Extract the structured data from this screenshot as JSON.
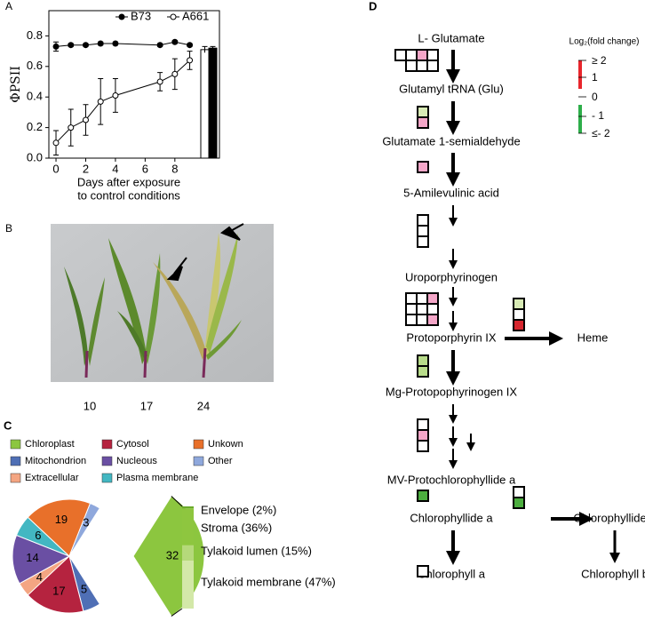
{
  "panel_labels": [
    "A",
    "B",
    "C",
    "D"
  ],
  "chart_data": [
    {
      "type": "line",
      "x": [
        0,
        1,
        2,
        3,
        4,
        7,
        8,
        9
      ],
      "series": [
        {
          "name": "B73",
          "color": "#000000",
          "marker": "filled",
          "values": [
            0.73,
            0.74,
            0.74,
            0.75,
            0.75,
            0.74,
            0.76,
            0.74
          ],
          "errors": [
            0.03,
            0.01,
            0.01,
            0.01,
            0.01,
            0.01,
            0.01,
            0.01
          ]
        },
        {
          "name": "A661",
          "color": "#000000",
          "marker": "open",
          "values": [
            0.1,
            0.2,
            0.25,
            0.37,
            0.41,
            0.5,
            0.55,
            0.64
          ],
          "errors": [
            0.08,
            0.12,
            0.1,
            0.15,
            0.11,
            0.06,
            0.1,
            0.06
          ]
        }
      ],
      "bars": [
        {
          "color": "#ffffff",
          "value": 0.71,
          "error": 0.02
        },
        {
          "color": "#000000",
          "value": 0.72,
          "error": 0.01
        }
      ],
      "xlim": [
        -0.48,
        11
      ],
      "ylim": [
        0,
        0.965
      ],
      "xticks": [
        0,
        2,
        4,
        6,
        8
      ],
      "yticks": [
        {
          "value": 0,
          "label": "0.0"
        },
        0.2,
        0.4,
        0.6,
        0.8
      ],
      "xlabel": [
        "Days after exposure",
        "to control conditions"
      ],
      "ylabel": "ΦPSII"
    },
    {
      "type": "pie",
      "categories": [
        "Chloroplast",
        "Mitochondrion",
        "Extracellular",
        "Cytosol",
        "Nucleous",
        "Plasma membrane",
        "Unkown",
        "Other"
      ],
      "values": [
        32,
        5,
        4,
        17,
        14,
        6,
        19,
        3
      ],
      "colors": [
        "#8cc63f",
        "#4f6fb5",
        "#f4a582",
        "#b5233f",
        "#6a4fa3",
        "#43b7c2",
        "#e8702a",
        "#8fa8dc"
      ],
      "breakdown": {
        "labels": [
          "Envelope (2%)",
          "Stroma (36%)",
          "Tylakoid lumen (15%)",
          "Tylakoid membrane (47%)"
        ],
        "values": [
          2,
          36,
          15,
          47
        ],
        "colors": [
          "#6aaa2a",
          "#8ec63f",
          "#b5d97a",
          "#d3e8a8"
        ]
      }
    }
  ],
  "photo": {
    "labels": [
      "10",
      "17",
      "24"
    ]
  },
  "pathway": {
    "nodes": [
      "L- Glutamate",
      "Glutamyl tRNA (Glu)",
      "Glutamate 1-semialdehyde",
      "5-Amilevulinic acid",
      "Uroporphyrinogen",
      "Protoporphyrin IX",
      "Heme",
      "Mg-Protopophyrinogen IX",
      "MV-Protochlorophyllide a",
      "Chlorophyllide a",
      "Chlorophyllide b",
      "Chlorophyll a",
      "Chlorophyll b"
    ],
    "legend": {
      "title": "Log₂(fold change)",
      "labels": [
        "≥ 2",
        "1",
        "0",
        "- 1",
        "≤- 2"
      ]
    }
  }
}
